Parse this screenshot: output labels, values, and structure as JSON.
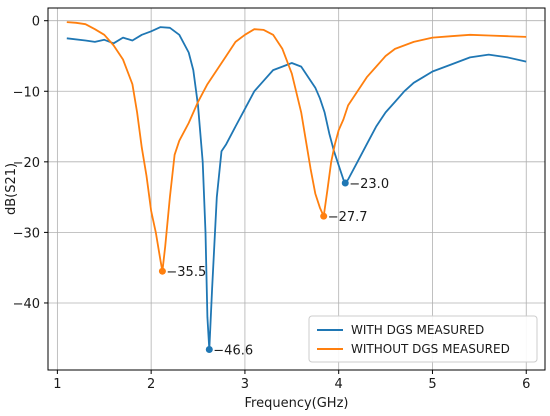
{
  "chart_data": {
    "type": "line",
    "title": "",
    "xlabel": "Frequency(GHz)",
    "ylabel": "dB(S21)",
    "xlim": [
      0.9,
      6.2
    ],
    "ylim": [
      -49.5,
      1.8
    ],
    "xticks": [
      1,
      2,
      3,
      4,
      5,
      6
    ],
    "yticks": [
      0,
      -10,
      -20,
      -30,
      -40
    ],
    "grid": true,
    "legend_position": "lower-right",
    "series": [
      {
        "name": "WITH DGS MEASURED",
        "color": "#1f77b4",
        "x": [
          1.1,
          1.3,
          1.4,
          1.5,
          1.6,
          1.7,
          1.8,
          1.9,
          2.0,
          2.1,
          2.2,
          2.3,
          2.4,
          2.45,
          2.5,
          2.55,
          2.58,
          2.6,
          2.62,
          2.65,
          2.7,
          2.75,
          2.8,
          2.9,
          3.0,
          3.1,
          3.2,
          3.3,
          3.4,
          3.5,
          3.6,
          3.7,
          3.75,
          3.8,
          3.85,
          3.9,
          3.95,
          4.0,
          4.05,
          4.07,
          4.1,
          4.2,
          4.3,
          4.4,
          4.5,
          4.6,
          4.7,
          4.8,
          4.9,
          5.0,
          5.2,
          5.4,
          5.6,
          5.8,
          6.0
        ],
        "y": [
          -2.5,
          -2.8,
          -3.0,
          -2.7,
          -3.2,
          -2.4,
          -2.8,
          -2.0,
          -1.5,
          -0.9,
          -1.0,
          -2.0,
          -4.5,
          -7.0,
          -12.0,
          -20.0,
          -30.0,
          -42.0,
          -46.6,
          -38.0,
          -25.0,
          -18.5,
          -17.5,
          -15.0,
          -12.5,
          -10.0,
          -8.5,
          -7.0,
          -6.5,
          -6.0,
          -6.5,
          -8.5,
          -9.5,
          -11.0,
          -13.0,
          -16.0,
          -18.5,
          -20.5,
          -22.5,
          -23.0,
          -22.5,
          -20.0,
          -17.5,
          -15.0,
          -13.0,
          -11.5,
          -10.0,
          -8.8,
          -8.0,
          -7.2,
          -6.2,
          -5.2,
          -4.8,
          -5.2,
          -5.8
        ],
        "annotation": {
          "x": 2.62,
          "y": -46.6,
          "label": "−46.6"
        },
        "annotation2": {
          "x": 4.07,
          "y": -23.0,
          "label": "−23.0"
        }
      },
      {
        "name": "WITHOUT DGS MEASURED",
        "color": "#ff7f0e",
        "x": [
          1.1,
          1.2,
          1.3,
          1.4,
          1.5,
          1.6,
          1.7,
          1.8,
          1.85,
          1.9,
          1.95,
          2.0,
          2.05,
          2.1,
          2.12,
          2.15,
          2.2,
          2.25,
          2.3,
          2.4,
          2.5,
          2.6,
          2.7,
          2.8,
          2.9,
          3.0,
          3.1,
          3.2,
          3.3,
          3.4,
          3.5,
          3.6,
          3.65,
          3.7,
          3.75,
          3.8,
          3.84,
          3.88,
          3.92,
          3.96,
          4.0,
          4.05,
          4.1,
          4.2,
          4.3,
          4.4,
          4.5,
          4.6,
          4.8,
          5.0,
          5.2,
          5.4,
          5.6,
          5.8,
          6.0
        ],
        "y": [
          -0.2,
          -0.3,
          -0.5,
          -1.2,
          -2.0,
          -3.5,
          -5.5,
          -9.0,
          -13.0,
          -18.0,
          -22.0,
          -27.0,
          -30.0,
          -34.0,
          -35.5,
          -32.0,
          -25.0,
          -19.0,
          -17.0,
          -14.5,
          -11.5,
          -9.0,
          -7.0,
          -5.0,
          -3.0,
          -2.0,
          -1.2,
          -1.3,
          -2.0,
          -4.0,
          -7.5,
          -13.0,
          -17.0,
          -21.0,
          -24.5,
          -26.5,
          -27.7,
          -24.0,
          -20.0,
          -17.5,
          -15.5,
          -14.0,
          -12.0,
          -10.0,
          -8.0,
          -6.5,
          -5.0,
          -4.0,
          -3.0,
          -2.4,
          -2.2,
          -2.0,
          -2.1,
          -2.2,
          -2.3
        ],
        "annotation": {
          "x": 2.12,
          "y": -35.5,
          "label": "−35.5"
        },
        "annotation2": {
          "x": 3.84,
          "y": -27.7,
          "label": "−27.7"
        }
      }
    ]
  }
}
